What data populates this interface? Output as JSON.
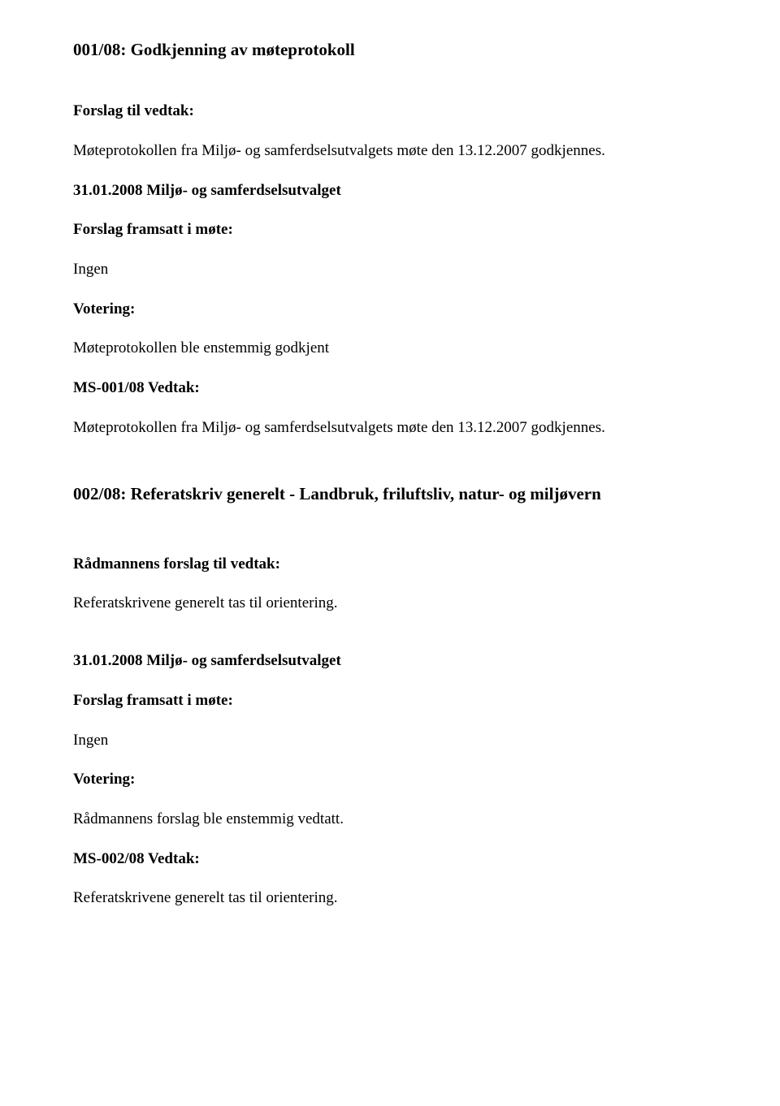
{
  "doc": {
    "section1": {
      "title": "001/08: Godkjenning av møteprotokoll",
      "forslag_label": "Forslag til vedtak:",
      "forslag_text": "Møteprotokollen fra Miljø- og samferdselsutvalgets møte den 13.12.2007 godkjennes.",
      "meeting_heading": "31.01.2008 Miljø- og samferdselsutvalget",
      "framsatt_label": "Forslag framsatt i møte:",
      "framsatt_text": "Ingen",
      "votering_label": "Votering:",
      "votering_text": "Møteprotokollen ble enstemmig godkjent",
      "vedtak_label": "MS-001/08 Vedtak:",
      "vedtak_text": "Møteprotokollen fra Miljø- og samferdselsutvalgets møte den 13.12.2007 godkjennes."
    },
    "section2": {
      "title": "002/08: Referatskriv generelt - Landbruk, friluftsliv, natur- og miljøvern",
      "forslag_label": "Rådmannens forslag til vedtak:",
      "forslag_text": "Referatskrivene generelt tas til orientering.",
      "meeting_heading": "31.01.2008 Miljø- og samferdselsutvalget",
      "framsatt_label": "Forslag framsatt i møte:",
      "framsatt_text": "Ingen",
      "votering_label": "Votering:",
      "votering_text": "Rådmannens forslag ble enstemmig vedtatt.",
      "vedtak_label": "MS-002/08 Vedtak:",
      "vedtak_text": "Referatskrivene generelt tas til orientering."
    }
  }
}
